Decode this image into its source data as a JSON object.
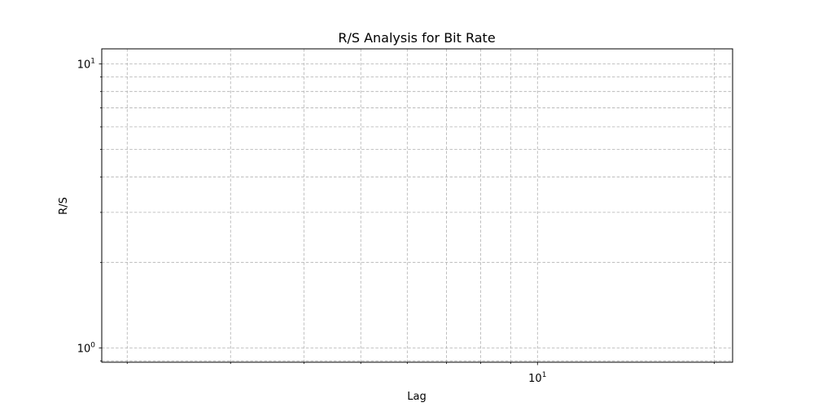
{
  "chart_data": {
    "type": "line",
    "title": "R/S Analysis for Bit Rate",
    "xlabel": "Lag",
    "ylabel": "R/S",
    "xscale": "log",
    "yscale": "log",
    "xlim": [
      1.81,
      21.5
    ],
    "ylim": [
      0.89,
      11.3
    ],
    "x_major_ticks": [
      {
        "value": 10,
        "base": "10",
        "exp": "1"
      }
    ],
    "x_minor_ticks": [
      2,
      3,
      4,
      5,
      6,
      7,
      8,
      9,
      20
    ],
    "y_major_ticks": [
      {
        "value": 1,
        "base": "10",
        "exp": "0"
      },
      {
        "value": 10,
        "base": "10",
        "exp": "1"
      }
    ],
    "y_minor_ticks": [
      0.9,
      2,
      3,
      4,
      5,
      6,
      7,
      8,
      9
    ],
    "grid": true,
    "grid_style": "dashed",
    "grid_color": "#b0b0b0",
    "series": []
  }
}
